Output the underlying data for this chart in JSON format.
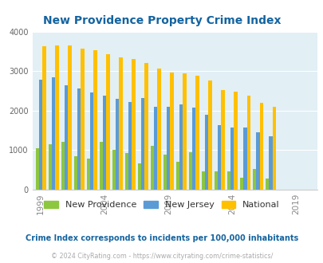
{
  "title": "New Providence Property Crime Index",
  "years": [
    1999,
    2000,
    2001,
    2002,
    2003,
    2004,
    2005,
    2006,
    2007,
    2008,
    2009,
    2010,
    2011,
    2012,
    2013,
    2014,
    2015,
    2016,
    2017,
    2018,
    2019,
    2020
  ],
  "new_providence": [
    1050,
    1140,
    1210,
    840,
    780,
    1200,
    1010,
    930,
    660,
    1110,
    890,
    700,
    940,
    450,
    450,
    460,
    300,
    510,
    280,
    0,
    0,
    0
  ],
  "new_jersey": [
    2780,
    2840,
    2640,
    2560,
    2460,
    2370,
    2300,
    2210,
    2310,
    2090,
    2090,
    2160,
    2070,
    1900,
    1630,
    1570,
    1560,
    1440,
    1350,
    0,
    0,
    0
  ],
  "national": [
    3620,
    3650,
    3640,
    3560,
    3520,
    3430,
    3350,
    3300,
    3210,
    3060,
    2960,
    2940,
    2890,
    2760,
    2520,
    2480,
    2380,
    2190,
    2100,
    0,
    0,
    0
  ],
  "color_np": "#8dc63f",
  "color_nj": "#5b9bd5",
  "color_nat": "#ffc000",
  "bg_color": "#e2eff5",
  "title_color": "#1464a0",
  "subtitle": "Crime Index corresponds to incidents per 100,000 inhabitants",
  "subtitle_color": "#1464a0",
  "footer": "© 2024 CityRating.com - https://www.cityrating.com/crime-statistics/",
  "footer_color": "#aaaaaa",
  "ylim": [
    0,
    4000
  ],
  "yticks": [
    0,
    1000,
    2000,
    3000,
    4000
  ],
  "xtick_years": [
    1999,
    2004,
    2009,
    2014,
    2019
  ],
  "bar_width": 0.27,
  "num_years": 22
}
